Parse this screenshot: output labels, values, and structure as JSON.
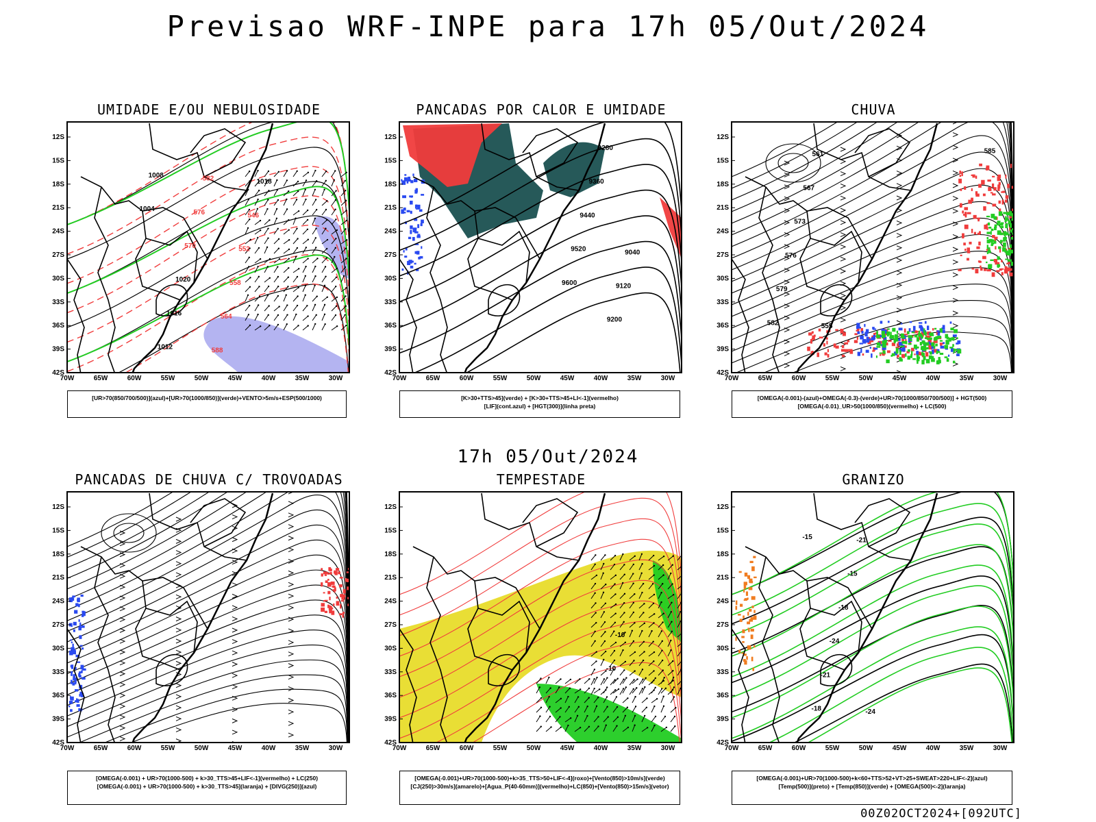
{
  "header": {
    "title": "Previsao WRF-INPE  para 17h 05/Out/2024"
  },
  "middle_title": "17h 05/Out/2024",
  "run_stamp": "00Z02OCT2024+[092UTC]",
  "axes": {
    "lat_ticks": [
      "12S",
      "15S",
      "18S",
      "21S",
      "24S",
      "27S",
      "30S",
      "33S",
      "36S",
      "39S",
      "42S"
    ],
    "lon_ticks": [
      "70W",
      "65W",
      "60W",
      "55W",
      "50W",
      "45W",
      "40W",
      "35W",
      "30W"
    ]
  },
  "colors": {
    "red": "#f03c3c",
    "green": "#22cc22",
    "blue": "#2a4af0",
    "lavender": "#b0b0f0",
    "teal": "#1a5050",
    "yellow": "#e8dc2a",
    "orange": "#f07c20",
    "black": "#000000"
  },
  "panels": [
    {
      "title": "UMIDADE E/OU NEBULOSIDADE",
      "caption": [
        "[UR>70(850/700/500)](azul)+[UR>70(1000/850)](verde)+VENTO>5m/s+ESP(500/1000)"
      ],
      "labels": [
        "1004",
        "1008",
        "1012",
        "1016",
        "1020",
        "570",
        "576",
        "582",
        "588",
        "564",
        "558",
        "552",
        "546",
        "1018"
      ]
    },
    {
      "title": "PANCADAS POR CALOR E UMIDADE",
      "caption": [
        "[K>30+TTS>45](verde) + [K>30+TTS>45+LI<-1](vermelho)",
        "[LIF](cont.azul) + [HGT(300)](linha preta)"
      ],
      "labels": [
        "9600",
        "9520",
        "9440",
        "9360",
        "9280",
        "9200",
        "9120",
        "9040"
      ]
    },
    {
      "title": "CHUVA",
      "caption": [
        "[OMEGA(-0.001)-(azul)+OMEGA(-0.3)-(verde)+UR>70(1000/850/700/500)] + HGT(500)",
        "[OMEGA(-0.01)_UR>50(1000/850)(vermelho) + LC(500)"
      ],
      "labels": [
        "585",
        "582",
        "579",
        "576",
        "573",
        "567",
        "561",
        "555"
      ]
    },
    {
      "title": "PANCADAS DE CHUVA C/ TROVOADAS",
      "caption": [
        "[OMEGA(-0.001) + UR>70(1000-500) + k>30_TTS>45+LIF<-1](vermelho) + LC(250)",
        "[OMEGA(-0.001) + UR>70(1000-500) + k>30_TTS>45](laranja) + [DIVG(250)](azul)"
      ],
      "labels": []
    },
    {
      "title": "TEMPESTADE",
      "caption": [
        "[OMEGA(-0.001)+UR>70(1000-500)+k>35_TTS>50+LIF<-4](roxo)+[Vento(850)>10m/s](verde)",
        "[CJ(250)>30m/s](amarelo)+[Agua_P(40-60mm)](vermelho)+LC(850)+[Vento(850)>15m/s](vetor)"
      ],
      "labels": [
        "-10",
        "-10"
      ]
    },
    {
      "title": "GRANIZO",
      "caption": [
        "[OMEGA(-0.001)+UR>70(1000-500)+k<60+TTS>52+VT>25+SWEAT>220+LIF<-2](azul)",
        "[Temp(500)](preto) + [Temp(850)](verde) + [OMEGA(500)<-2](laranja)"
      ],
      "labels": [
        "-15",
        "-18",
        "-21",
        "-24",
        "-18",
        "-15",
        "-21",
        "-24"
      ]
    }
  ]
}
